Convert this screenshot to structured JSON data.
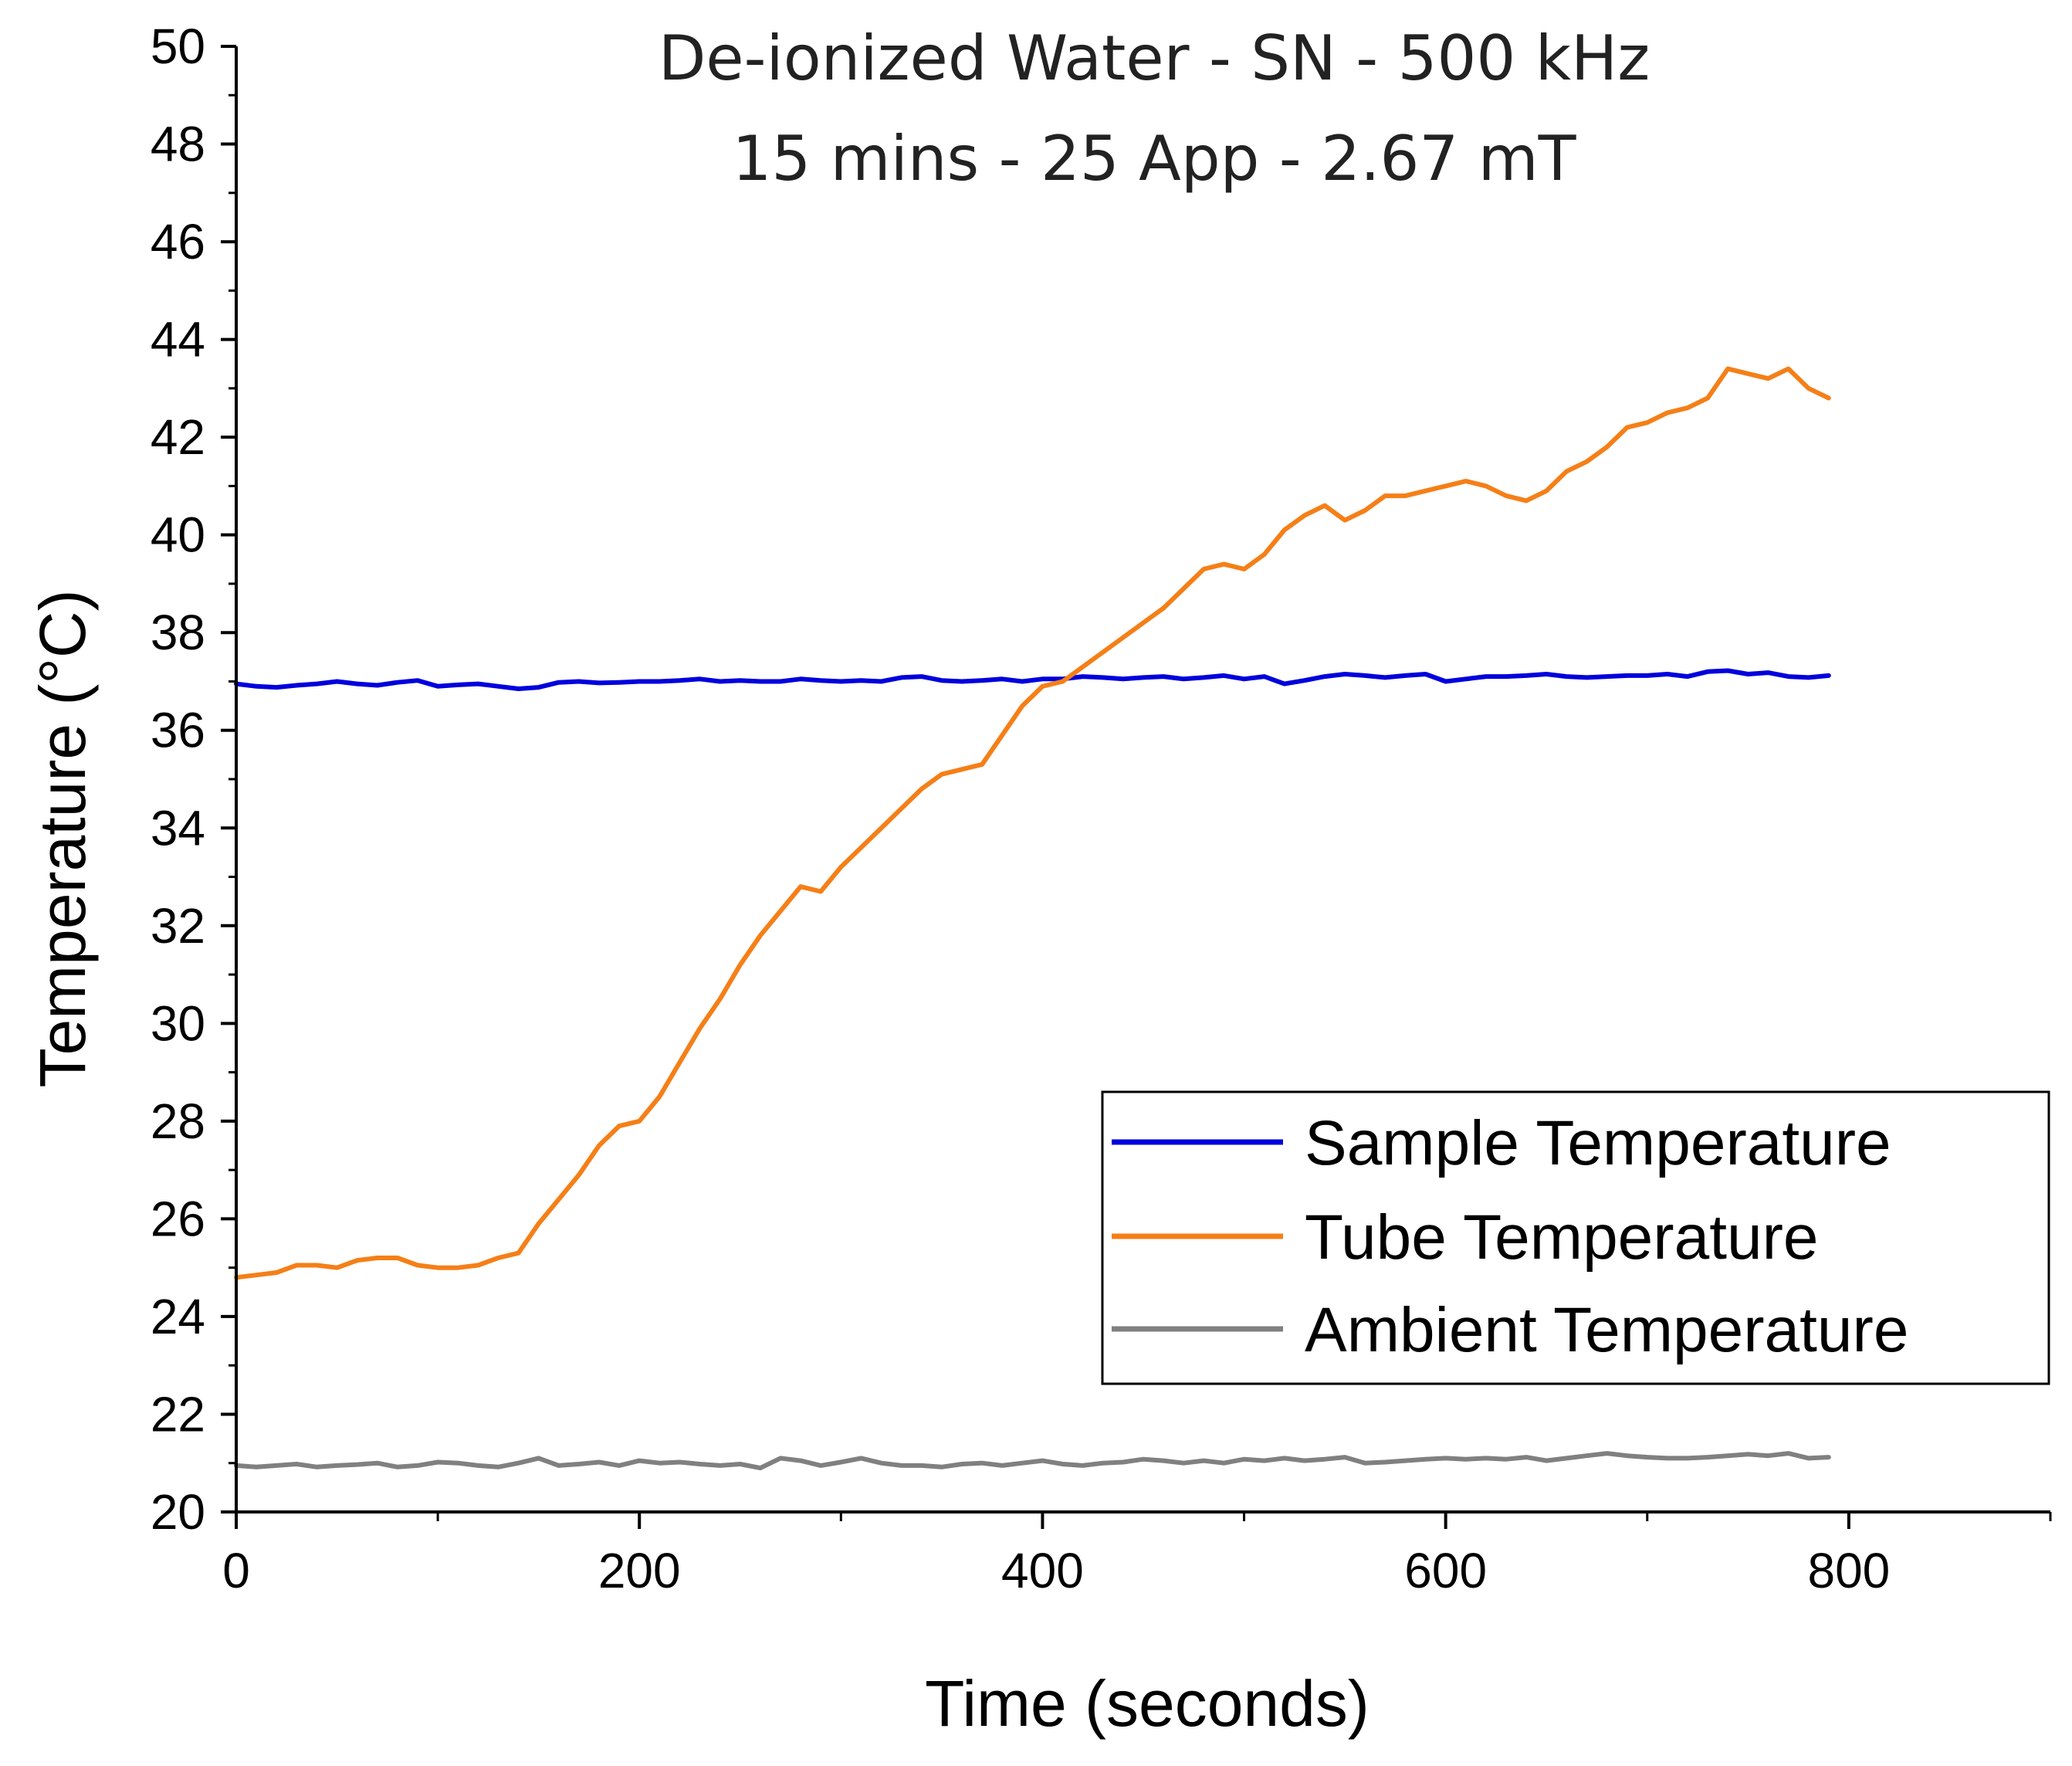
{
  "chart_data": {
    "type": "line",
    "title": [
      "De-ionized Water - SN - 500 kHz",
      "15 mins - 25 App - 2.67 mT"
    ],
    "xlabel": "Time (seconds)",
    "ylabel": "Temperature (°C)",
    "xlim": [
      0,
      900
    ],
    "ylim": [
      20,
      50
    ],
    "x_major_ticks": [
      0,
      200,
      400,
      600,
      800
    ],
    "x_tick_labels": [
      "0",
      "200",
      "400",
      "600",
      "800"
    ],
    "x_minor_step": 100,
    "y_major_ticks": [
      20,
      22,
      24,
      26,
      28,
      30,
      32,
      34,
      36,
      38,
      40,
      42,
      44,
      46,
      48,
      50
    ],
    "y_tick_labels": [
      "20",
      "22",
      "24",
      "26",
      "28",
      "30",
      "32",
      "34",
      "36",
      "38",
      "40",
      "42",
      "44",
      "46",
      "48",
      "50"
    ],
    "y_minor_step": 1,
    "grid": false,
    "legend_position": "bottom-right",
    "series": [
      {
        "name": "Sample Temperature",
        "color": "#0000DD",
        "x": [
          0,
          10,
          20,
          30,
          40,
          50,
          60,
          70,
          80,
          90,
          100,
          110,
          120,
          130,
          140,
          150,
          160,
          170,
          180,
          190,
          200,
          210,
          220,
          230,
          240,
          250,
          260,
          270,
          280,
          290,
          300,
          310,
          320,
          330,
          340,
          350,
          360,
          370,
          380,
          390,
          400,
          410,
          420,
          430,
          440,
          450,
          460,
          470,
          480,
          490,
          500,
          510,
          520,
          530,
          540,
          550,
          560,
          570,
          580,
          590,
          600,
          610,
          620,
          630,
          640,
          650,
          660,
          670,
          680,
          690,
          700,
          710,
          720,
          730,
          740,
          750,
          760,
          770,
          780,
          790
        ],
        "values": [
          36.95,
          36.9,
          36.88,
          36.92,
          36.95,
          37.0,
          36.95,
          36.92,
          36.98,
          37.02,
          36.9,
          36.93,
          36.95,
          36.9,
          36.85,
          36.88,
          36.98,
          37.0,
          36.97,
          36.98,
          37.0,
          37.0,
          37.02,
          37.05,
          37.0,
          37.02,
          37.0,
          37.0,
          37.05,
          37.02,
          37.0,
          37.02,
          37.0,
          37.08,
          37.1,
          37.02,
          37.0,
          37.02,
          37.05,
          37.0,
          37.05,
          37.05,
          37.1,
          37.08,
          37.05,
          37.08,
          37.1,
          37.05,
          37.08,
          37.12,
          37.05,
          37.1,
          36.95,
          37.02,
          37.1,
          37.15,
          37.12,
          37.08,
          37.12,
          37.15,
          37.0,
          37.05,
          37.1,
          37.1,
          37.12,
          37.15,
          37.1,
          37.08,
          37.1,
          37.12,
          37.12,
          37.15,
          37.1,
          37.2,
          37.22,
          37.15,
          37.18,
          37.1,
          37.08,
          37.12
        ]
      },
      {
        "name": "Tube Temperature",
        "color": "#F57F17",
        "x": [
          0,
          10,
          20,
          30,
          40,
          50,
          60,
          70,
          80,
          90,
          100,
          110,
          120,
          130,
          140,
          150,
          160,
          170,
          180,
          190,
          200,
          210,
          220,
          230,
          240,
          250,
          260,
          270,
          280,
          290,
          300,
          310,
          320,
          330,
          340,
          350,
          360,
          370,
          380,
          390,
          400,
          410,
          420,
          430,
          440,
          450,
          460,
          470,
          480,
          490,
          500,
          510,
          520,
          530,
          540,
          550,
          560,
          570,
          580,
          590,
          600,
          610,
          620,
          630,
          640,
          650,
          660,
          670,
          680,
          690,
          700,
          710,
          720,
          730,
          740,
          750,
          760,
          770,
          780,
          790
        ],
        "values": [
          24.8,
          24.85,
          24.9,
          25.05,
          25.05,
          25.0,
          25.15,
          25.2,
          25.2,
          25.05,
          25.0,
          25.0,
          25.05,
          25.2,
          25.3,
          25.9,
          26.4,
          26.9,
          27.5,
          27.9,
          28.0,
          28.5,
          29.2,
          29.9,
          30.5,
          31.2,
          31.8,
          32.3,
          32.8,
          32.7,
          33.2,
          33.6,
          34.0,
          34.4,
          34.8,
          35.1,
          35.2,
          35.3,
          35.9,
          36.5,
          36.9,
          37.0,
          37.3,
          37.6,
          37.9,
          38.2,
          38.5,
          38.9,
          39.3,
          39.4,
          39.3,
          39.6,
          40.1,
          40.4,
          40.6,
          40.3,
          40.5,
          40.8,
          40.8,
          40.9,
          41.0,
          41.1,
          41.0,
          40.8,
          40.7,
          40.9,
          41.3,
          41.5,
          41.8,
          42.2,
          42.3,
          42.5,
          42.6,
          42.8,
          43.4,
          43.3,
          43.2,
          43.4,
          43.0,
          42.8
        ]
      },
      {
        "name": "Ambient Temperature",
        "color": "#808080",
        "x": [
          0,
          10,
          20,
          30,
          40,
          50,
          60,
          70,
          80,
          90,
          100,
          110,
          120,
          130,
          140,
          150,
          160,
          170,
          180,
          190,
          200,
          210,
          220,
          230,
          240,
          250,
          260,
          270,
          280,
          290,
          300,
          310,
          320,
          330,
          340,
          350,
          360,
          370,
          380,
          390,
          400,
          410,
          420,
          430,
          440,
          450,
          460,
          470,
          480,
          490,
          500,
          510,
          520,
          530,
          540,
          550,
          560,
          570,
          580,
          590,
          600,
          610,
          620,
          630,
          640,
          650,
          660,
          670,
          680,
          690,
          700,
          710,
          720,
          730,
          740,
          750,
          760,
          770,
          780,
          790
        ],
        "values": [
          20.95,
          20.92,
          20.95,
          20.98,
          20.92,
          20.95,
          20.97,
          21.0,
          20.92,
          20.95,
          21.02,
          21.0,
          20.95,
          20.92,
          21.0,
          21.1,
          20.95,
          20.98,
          21.02,
          20.95,
          21.05,
          21.0,
          21.02,
          20.98,
          20.95,
          20.98,
          20.9,
          21.1,
          21.05,
          20.95,
          21.02,
          21.1,
          21.0,
          20.95,
          20.95,
          20.92,
          20.98,
          21.0,
          20.95,
          21.0,
          21.05,
          20.98,
          20.95,
          21.0,
          21.02,
          21.08,
          21.05,
          21.0,
          21.05,
          21.0,
          21.08,
          21.05,
          21.1,
          21.05,
          21.08,
          21.12,
          21.0,
          21.02,
          21.05,
          21.08,
          21.1,
          21.08,
          21.1,
          21.08,
          21.12,
          21.05,
          21.1,
          21.15,
          21.2,
          21.15,
          21.12,
          21.1,
          21.1,
          21.12,
          21.15,
          21.18,
          21.15,
          21.2,
          21.1,
          21.12
        ]
      }
    ]
  }
}
